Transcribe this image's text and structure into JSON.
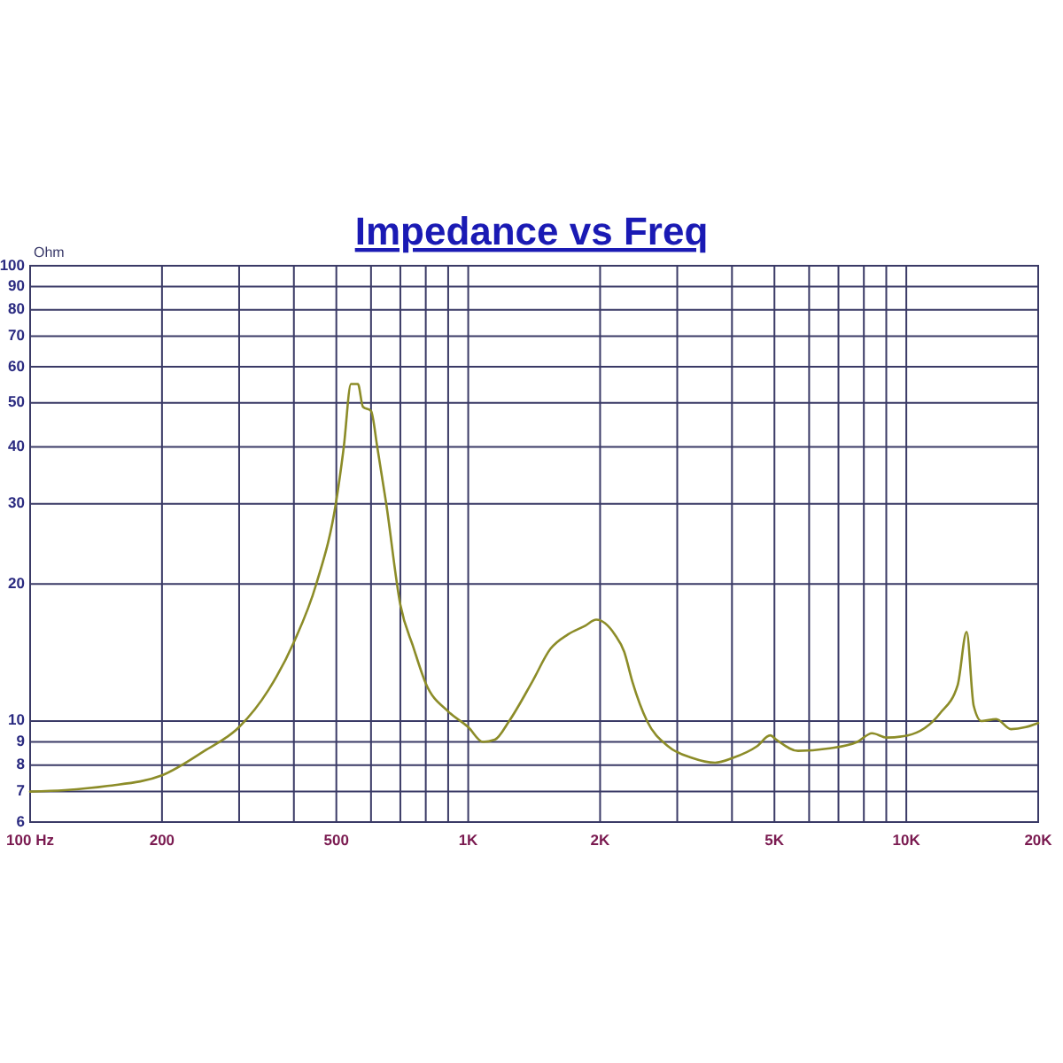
{
  "chart_data": {
    "type": "line",
    "title": "Impedance vs Freq",
    "ylabel": "Ohm",
    "x": [
      100,
      120,
      150,
      200,
      250,
      300,
      350,
      400,
      450,
      500,
      520,
      540,
      560,
      575,
      600,
      620,
      650,
      700,
      750,
      800,
      900,
      1000,
      1080,
      1150,
      1240,
      1400,
      1540,
      1690,
      1850,
      1960,
      2160,
      2270,
      2370,
      2560,
      2860,
      3240,
      3660,
      4020,
      4560,
      4890,
      5050,
      5660,
      6620,
      7730,
      8350,
      9030,
      10070,
      11940,
      13100,
      13730,
      14250,
      14840,
      16040,
      17330,
      18740,
      20000
    ],
    "series": [
      {
        "color": "#8c8c28",
        "values": [
          7.0,
          7.05,
          7.2,
          7.6,
          8.6,
          9.7,
          11.7,
          14.9,
          20,
          30.5,
          40,
          55,
          55,
          49,
          48,
          40,
          30,
          18,
          14.5,
          12.1,
          10.5,
          9.7,
          9.0,
          9.1,
          10,
          12.2,
          14.4,
          15.5,
          16.2,
          16.7,
          15.5,
          14.2,
          12.2,
          10,
          8.8,
          8.3,
          8.1,
          8.3,
          8.8,
          9.3,
          9.1,
          8.6,
          8.7,
          9.0,
          9.4,
          9.2,
          9.3,
          10.4,
          12.0,
          15.7,
          10.8,
          10,
          10.1,
          9.6,
          9.7,
          9.9
        ]
      }
    ],
    "xlim": [
      100,
      20000
    ],
    "ylim": [
      6,
      100
    ],
    "xticks": [
      {
        "value": 100,
        "label": "100 Hz"
      },
      200,
      {
        "value": 300,
        "label": null
      },
      {
        "value": 400,
        "label": null
      },
      500,
      {
        "value": 600,
        "label": null
      },
      {
        "value": 700,
        "label": null
      },
      {
        "value": 800,
        "label": null
      },
      {
        "value": 900,
        "label": null
      },
      {
        "value": 1000,
        "label": "1K"
      },
      {
        "value": 2000,
        "label": "2K"
      },
      {
        "value": 3000,
        "label": null
      },
      {
        "value": 4000,
        "label": null
      },
      {
        "value": 5000,
        "label": "5K"
      },
      {
        "value": 6000,
        "label": null
      },
      {
        "value": 7000,
        "label": null
      },
      {
        "value": 8000,
        "label": null
      },
      {
        "value": 9000,
        "label": null
      },
      {
        "value": 10000,
        "label": "10K"
      },
      {
        "value": 20000,
        "label": "20K"
      }
    ],
    "yticks": [
      6,
      7,
      8,
      9,
      10,
      20,
      30,
      40,
      50,
      60,
      70,
      80,
      90,
      100
    ],
    "log": "xy",
    "grid": true
  }
}
